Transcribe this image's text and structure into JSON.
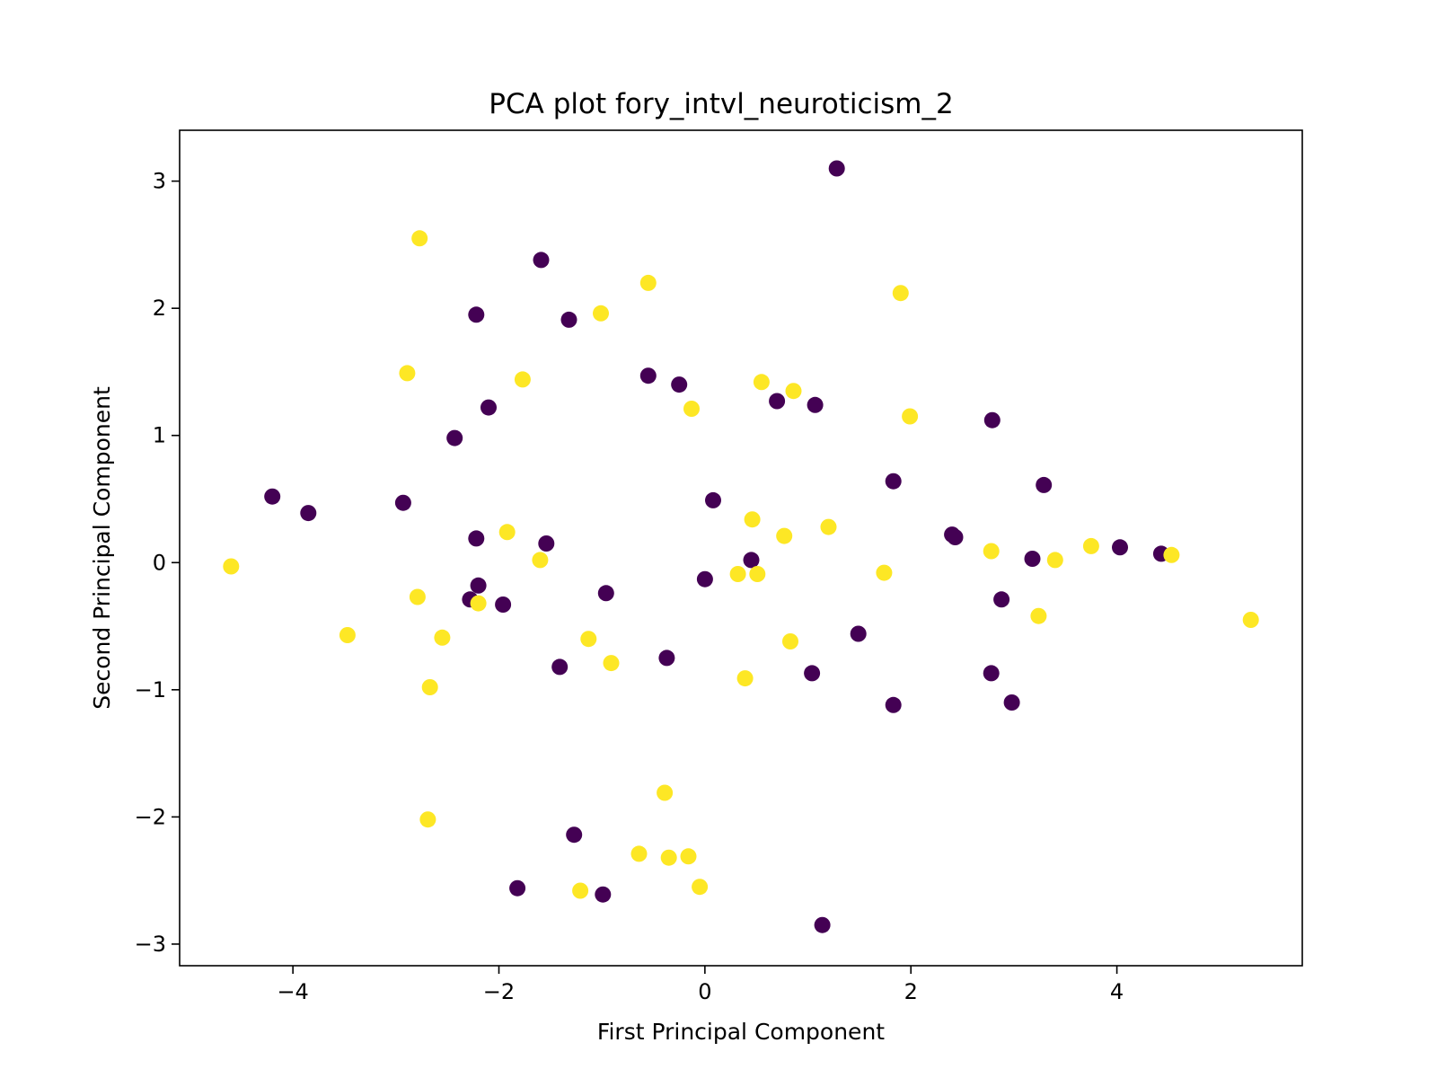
{
  "chart_data": {
    "type": "scatter",
    "title": "PCA plot fory_intvl_neuroticism_2",
    "xlabel": "First Principal Component",
    "ylabel": "Second Principal Component",
    "xlim": [
      -5.1,
      5.8
    ],
    "ylim": [
      -3.17,
      3.4
    ],
    "xticks": [
      -4,
      -2,
      0,
      2,
      4
    ],
    "xtick_labels": [
      "−4",
      "−2",
      "0",
      "2",
      "4"
    ],
    "yticks": [
      -3,
      -2,
      -1,
      0,
      1,
      2,
      3
    ],
    "ytick_labels": [
      "−3",
      "−2",
      "−1",
      "0",
      "1",
      "2",
      "3"
    ],
    "grid": false,
    "colors": {
      "class_0": "#440154",
      "class_1": "#fde725"
    },
    "points": [
      {
        "x": -4.2,
        "y": 0.52,
        "c": 0
      },
      {
        "x": -3.85,
        "y": 0.39,
        "c": 0
      },
      {
        "x": -2.93,
        "y": 0.47,
        "c": 0
      },
      {
        "x": -2.43,
        "y": 0.98,
        "c": 0
      },
      {
        "x": -2.22,
        "y": 1.95,
        "c": 0
      },
      {
        "x": -2.1,
        "y": 1.22,
        "c": 0
      },
      {
        "x": -2.22,
        "y": 0.19,
        "c": 0
      },
      {
        "x": -2.2,
        "y": -0.18,
        "c": 0
      },
      {
        "x": -2.28,
        "y": -0.29,
        "c": 0
      },
      {
        "x": -1.96,
        "y": -0.33,
        "c": 0
      },
      {
        "x": -1.59,
        "y": 2.38,
        "c": 0
      },
      {
        "x": -1.54,
        "y": 0.15,
        "c": 0
      },
      {
        "x": -1.32,
        "y": 1.91,
        "c": 0
      },
      {
        "x": -1.41,
        "y": -0.82,
        "c": 0
      },
      {
        "x": -0.96,
        "y": -0.24,
        "c": 0
      },
      {
        "x": -1.27,
        "y": -2.14,
        "c": 0
      },
      {
        "x": -1.82,
        "y": -2.56,
        "c": 0
      },
      {
        "x": -0.99,
        "y": -2.61,
        "c": 0
      },
      {
        "x": -0.55,
        "y": 1.47,
        "c": 0
      },
      {
        "x": -0.25,
        "y": 1.4,
        "c": 0
      },
      {
        "x": 0.08,
        "y": 0.49,
        "c": 0
      },
      {
        "x": 0.0,
        "y": -0.13,
        "c": 0
      },
      {
        "x": -0.37,
        "y": -0.75,
        "c": 0
      },
      {
        "x": 0.45,
        "y": 0.02,
        "c": 0
      },
      {
        "x": 0.7,
        "y": 1.27,
        "c": 0
      },
      {
        "x": 1.07,
        "y": 1.24,
        "c": 0
      },
      {
        "x": 1.28,
        "y": 3.1,
        "c": 0
      },
      {
        "x": 1.04,
        "y": -0.87,
        "c": 0
      },
      {
        "x": 1.49,
        "y": -0.56,
        "c": 0
      },
      {
        "x": 1.14,
        "y": -2.85,
        "c": 0
      },
      {
        "x": 1.83,
        "y": 0.64,
        "c": 0
      },
      {
        "x": 1.83,
        "y": -1.12,
        "c": 0
      },
      {
        "x": 2.4,
        "y": 0.22,
        "c": 0
      },
      {
        "x": 2.43,
        "y": 0.2,
        "c": 0
      },
      {
        "x": 2.79,
        "y": 1.12,
        "c": 0
      },
      {
        "x": 2.88,
        "y": -0.29,
        "c": 0
      },
      {
        "x": 2.78,
        "y": -0.87,
        "c": 0
      },
      {
        "x": 2.98,
        "y": -1.1,
        "c": 0
      },
      {
        "x": 3.18,
        "y": 0.03,
        "c": 0
      },
      {
        "x": 3.29,
        "y": 0.61,
        "c": 0
      },
      {
        "x": 4.03,
        "y": 0.12,
        "c": 0
      },
      {
        "x": 4.43,
        "y": 0.07,
        "c": 0
      },
      {
        "x": -4.6,
        "y": -0.03,
        "c": 1
      },
      {
        "x": -3.47,
        "y": -0.57,
        "c": 1
      },
      {
        "x": -2.77,
        "y": 2.55,
        "c": 1
      },
      {
        "x": -2.89,
        "y": 1.49,
        "c": 1
      },
      {
        "x": -2.79,
        "y": -0.27,
        "c": 1
      },
      {
        "x": -2.55,
        "y": -0.59,
        "c": 1
      },
      {
        "x": -2.67,
        "y": -0.98,
        "c": 1
      },
      {
        "x": -2.69,
        "y": -2.02,
        "c": 1
      },
      {
        "x": -2.2,
        "y": -0.32,
        "c": 1
      },
      {
        "x": -1.92,
        "y": 0.24,
        "c": 1
      },
      {
        "x": -1.77,
        "y": 1.44,
        "c": 1
      },
      {
        "x": -1.6,
        "y": 0.02,
        "c": 1
      },
      {
        "x": -1.13,
        "y": -0.6,
        "c": 1
      },
      {
        "x": -1.01,
        "y": 1.96,
        "c": 1
      },
      {
        "x": -0.91,
        "y": -0.79,
        "c": 1
      },
      {
        "x": -1.21,
        "y": -2.58,
        "c": 1
      },
      {
        "x": -0.64,
        "y": -2.29,
        "c": 1
      },
      {
        "x": -0.55,
        "y": 2.2,
        "c": 1
      },
      {
        "x": -0.39,
        "y": -1.81,
        "c": 1
      },
      {
        "x": -0.35,
        "y": -2.32,
        "c": 1
      },
      {
        "x": -0.16,
        "y": -2.31,
        "c": 1
      },
      {
        "x": -0.13,
        "y": 1.21,
        "c": 1
      },
      {
        "x": -0.05,
        "y": -2.55,
        "c": 1
      },
      {
        "x": 0.32,
        "y": -0.09,
        "c": 1
      },
      {
        "x": 0.39,
        "y": -0.91,
        "c": 1
      },
      {
        "x": 0.46,
        "y": 0.34,
        "c": 1
      },
      {
        "x": 0.51,
        "y": -0.09,
        "c": 1
      },
      {
        "x": 0.55,
        "y": 1.42,
        "c": 1
      },
      {
        "x": 0.77,
        "y": 0.21,
        "c": 1
      },
      {
        "x": 0.83,
        "y": -0.62,
        "c": 1
      },
      {
        "x": 0.86,
        "y": 1.35,
        "c": 1
      },
      {
        "x": 1.2,
        "y": 0.28,
        "c": 1
      },
      {
        "x": 1.74,
        "y": -0.08,
        "c": 1
      },
      {
        "x": 1.9,
        "y": 2.12,
        "c": 1
      },
      {
        "x": 1.99,
        "y": 1.15,
        "c": 1
      },
      {
        "x": 2.78,
        "y": 0.09,
        "c": 1
      },
      {
        "x": 3.24,
        "y": -0.42,
        "c": 1
      },
      {
        "x": 3.4,
        "y": 0.02,
        "c": 1
      },
      {
        "x": 3.75,
        "y": 0.13,
        "c": 1
      },
      {
        "x": 4.53,
        "y": 0.06,
        "c": 1
      },
      {
        "x": 5.3,
        "y": -0.45,
        "c": 1
      }
    ]
  }
}
